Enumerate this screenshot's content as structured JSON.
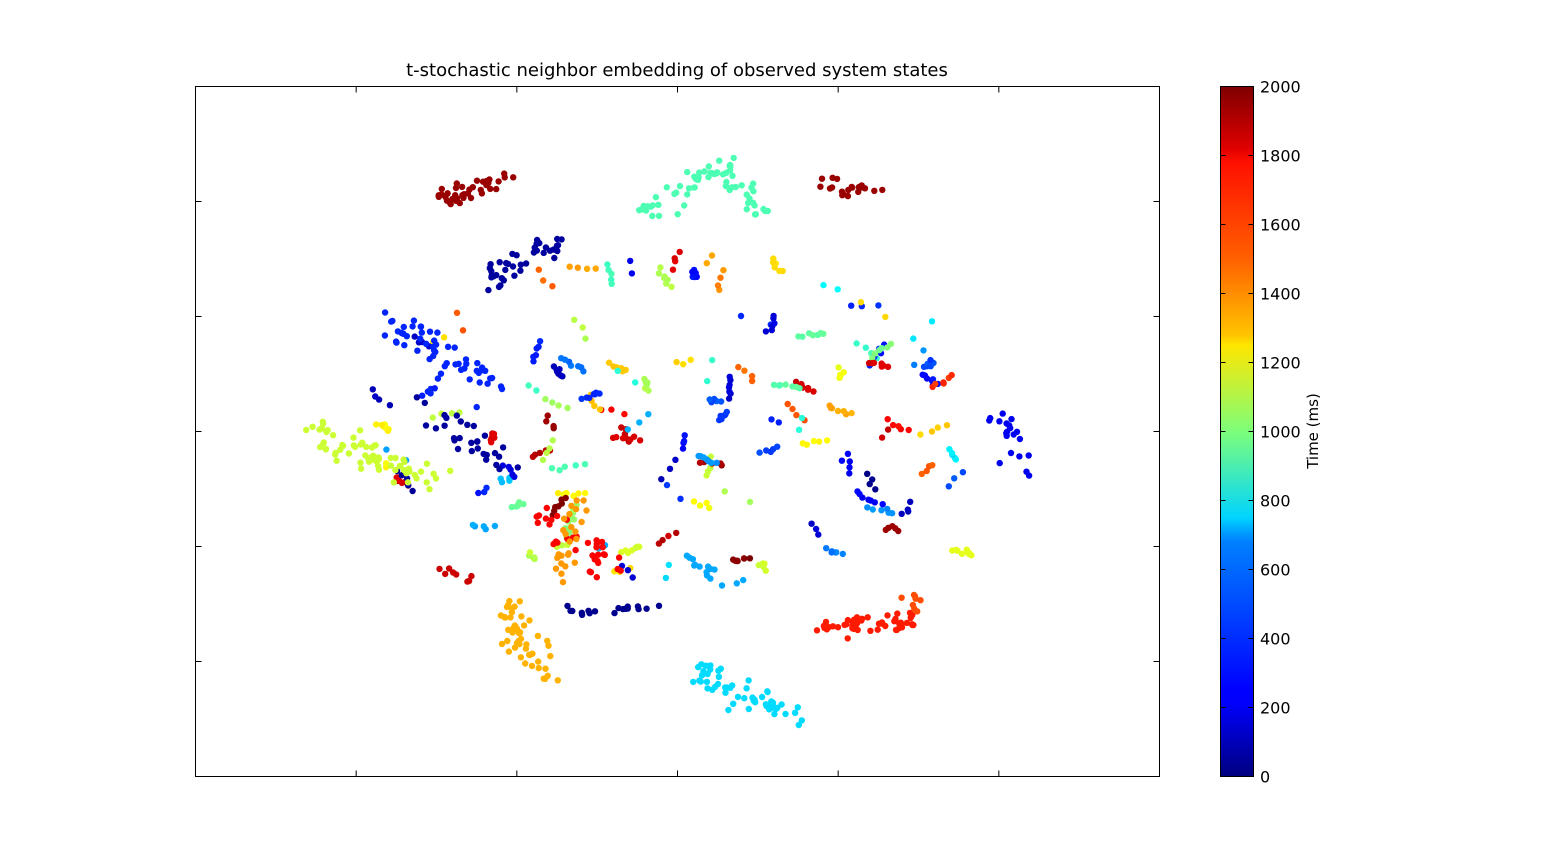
{
  "chart_data": {
    "type": "scatter",
    "title": "t-stochastic neighbor embedding of observed system states",
    "xlabel": "",
    "ylabel": "",
    "xlim": [
      -60,
      60
    ],
    "ylim": [
      -60,
      60
    ],
    "x_tick_labels_visible": false,
    "y_tick_labels_visible": false,
    "colormap": "jet",
    "colorbar": {
      "label": "Time (ms)",
      "range": [
        0,
        2000
      ],
      "ticks": [
        "0",
        "200",
        "400",
        "600",
        "800",
        "1000",
        "1200",
        "1400",
        "1600",
        "1800",
        "2000"
      ]
    },
    "clusters": [
      {
        "time": 1950,
        "x0": -30,
        "y0": 40,
        "x1": -21,
        "y1": 44,
        "n": 40,
        "spread": 0.8
      },
      {
        "time": 1950,
        "x0": 18,
        "y0": 43,
        "x1": 24,
        "y1": 42,
        "n": 20,
        "spread": 0.8
      },
      {
        "time": 900,
        "x0": -4,
        "y0": 38,
        "x1": 6,
        "y1": 46,
        "n": 40,
        "spread": 1.0
      },
      {
        "time": 900,
        "x0": 6,
        "y0": 46,
        "x1": 11,
        "y1": 37,
        "n": 25,
        "spread": 0.9
      },
      {
        "time": 60,
        "x0": -23,
        "y0": 26,
        "x1": -18,
        "y1": 32,
        "n": 25,
        "spread": 1.2
      },
      {
        "time": 60,
        "x0": -18,
        "y0": 31,
        "x1": -14,
        "y1": 33,
        "n": 15,
        "spread": 1.0
      },
      {
        "time": 320,
        "x0": -36,
        "y0": 20,
        "x1": -23,
        "y1": 7,
        "n": 55,
        "spread": 1.4
      },
      {
        "time": 60,
        "x0": -31,
        "y0": 4,
        "x1": -22,
        "y1": -6,
        "n": 30,
        "spread": 1.2
      },
      {
        "time": 1150,
        "x0": -46,
        "y0": 0,
        "x1": -30,
        "y1": -9,
        "n": 70,
        "spread": 1.2
      },
      {
        "time": 1400,
        "x0": -21,
        "y0": -30,
        "x1": -17,
        "y1": -43,
        "n": 50,
        "spread": 1.1
      },
      {
        "time": 1700,
        "x0": 17,
        "y0": -34,
        "x1": 29,
        "y1": -33,
        "n": 55,
        "spread": 0.8
      },
      {
        "time": 680,
        "x0": 2,
        "y0": -42,
        "x1": 14,
        "y1": -50,
        "n": 55,
        "spread": 1.1
      },
      {
        "time": 1750,
        "x0": -17,
        "y0": -14,
        "x1": -8,
        "y1": -24,
        "n": 35,
        "spread": 1.3
      },
      {
        "time": 1450,
        "x0": -12,
        "y0": -12,
        "x1": -15,
        "y1": -26,
        "n": 25,
        "spread": 1.0
      },
      {
        "time": 580,
        "x0": 1,
        "y0": -22,
        "x1": 8,
        "y1": -27,
        "n": 15,
        "spread": 0.6
      },
      {
        "time": 220,
        "x0": 40,
        "y0": 4,
        "x1": 44,
        "y1": -8,
        "n": 20,
        "spread": 0.8
      },
      {
        "time": 1200,
        "x0": 34,
        "y0": -21,
        "x1": 38,
        "y1": -22,
        "n": 10,
        "spread": 0.5
      },
      {
        "time": 1600,
        "x0": 28,
        "y0": -28,
        "x1": 30,
        "y1": -31,
        "n": 8,
        "spread": 0.5
      },
      {
        "time": 30,
        "x0": -14,
        "y0": -31,
        "x1": -3,
        "y1": -31,
        "n": 18,
        "spread": 0.5
      },
      {
        "time": 1850,
        "x0": -29,
        "y0": -24,
        "x1": -25,
        "y1": -26,
        "n": 8,
        "spread": 0.4
      }
    ],
    "scatter_region": {
      "cx": 0,
      "cy": 2,
      "rx": 38,
      "ry": 28,
      "n": 560,
      "time_range": [
        0,
        2000
      ]
    }
  }
}
